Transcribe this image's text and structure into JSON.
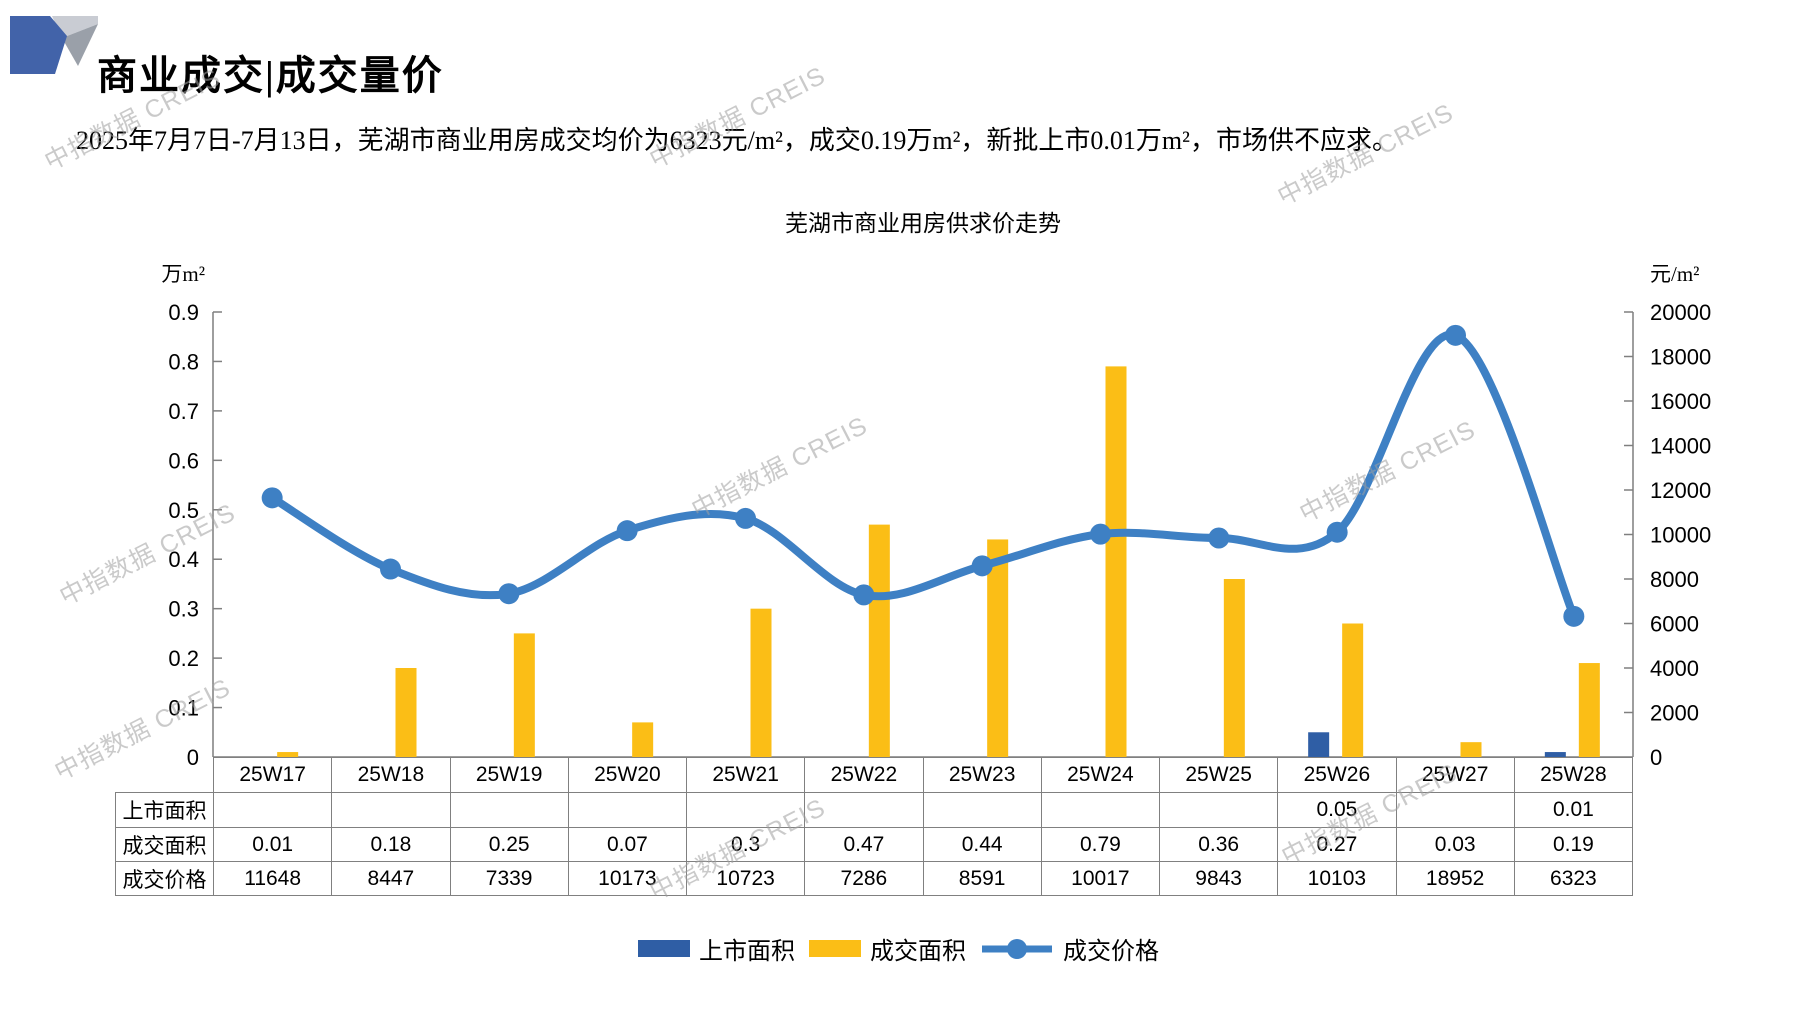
{
  "header": {
    "title": "商业成交|成交量价"
  },
  "summary": "2025年7月7日-7月13日，芜湖市商业用房成交均价为6323元/m²，成交0.19万m²，新批上市0.01万m²，市场供不应求。",
  "watermark": "中指数据 CREIS",
  "colors": {
    "listed_bar": "#2F5EA5",
    "sold_bar": "#FBBE16",
    "price_line": "#3E80C4",
    "axis": "#7F7F7F",
    "table_border": "#808080"
  },
  "chart_data": {
    "type": "combo-bar-line",
    "title": "芜湖市商业用房供求价走势",
    "categories": [
      "25W17",
      "25W18",
      "25W19",
      "25W20",
      "25W21",
      "25W22",
      "25W23",
      "25W24",
      "25W25",
      "25W26",
      "25W27",
      "25W28"
    ],
    "series": [
      {
        "name": "上市面积",
        "type": "bar",
        "axis": "left",
        "color": "#2F5EA5",
        "values": [
          "",
          "",
          "",
          "",
          "",
          "",
          "",
          "",
          "",
          "0.05",
          "",
          "0.01"
        ]
      },
      {
        "name": "成交面积",
        "type": "bar",
        "axis": "left",
        "color": "#FBBE16",
        "values": [
          "0.01",
          "0.18",
          "0.25",
          "0.07",
          "0.3",
          "0.47",
          "0.44",
          "0.79",
          "0.36",
          "0.27",
          "0.03",
          "0.19"
        ]
      },
      {
        "name": "成交价格",
        "type": "line",
        "axis": "right",
        "color": "#3E80C4",
        "values": [
          "11648",
          "8447",
          "7339",
          "10173",
          "10723",
          "7286",
          "8591",
          "10017",
          "9843",
          "10103",
          "18952",
          "6323"
        ]
      }
    ],
    "left_axis": {
      "unit": "万m²",
      "min": 0,
      "max": 0.9,
      "step": 0.1
    },
    "right_axis": {
      "unit": "元/m²",
      "min": 0,
      "max": 20000,
      "step": 2000
    },
    "grid": false,
    "legend_position": "bottom"
  }
}
